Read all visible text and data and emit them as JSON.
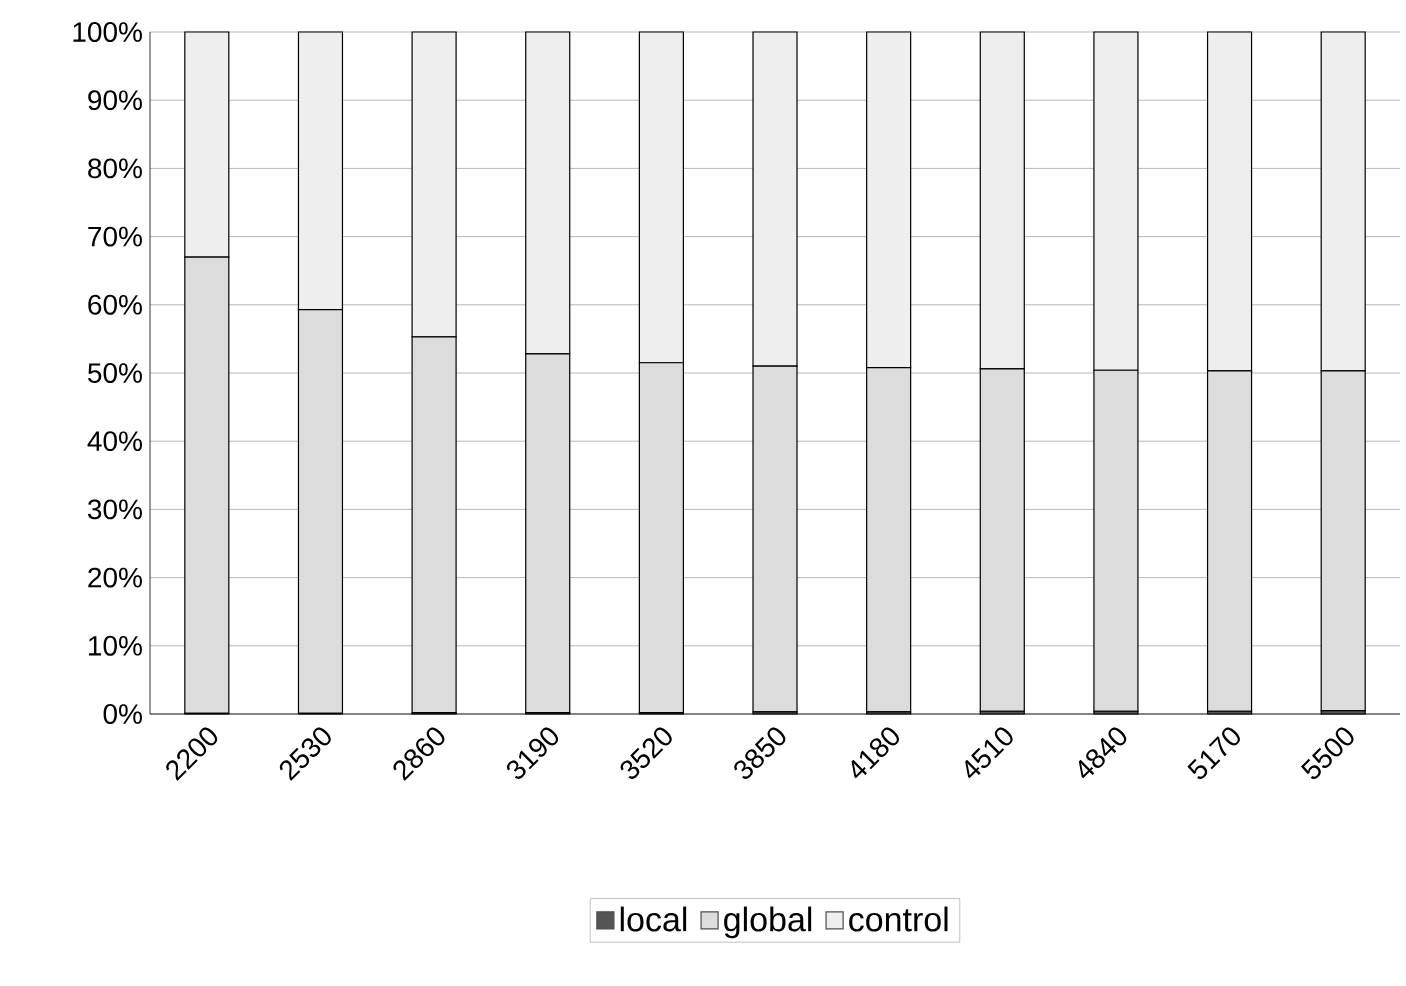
{
  "chart_data": {
    "type": "bar",
    "stacked": true,
    "categories": [
      "2200",
      "2530",
      "2860",
      "3190",
      "3520",
      "3850",
      "4180",
      "4510",
      "4840",
      "5170",
      "5500"
    ],
    "series": [
      {
        "name": "local",
        "color": "#555555",
        "values": [
          0.1,
          0.1,
          0.2,
          0.2,
          0.2,
          0.3,
          0.3,
          0.4,
          0.4,
          0.4,
          0.5
        ]
      },
      {
        "name": "global",
        "color": "#dcdcdc",
        "values": [
          66.9,
          59.2,
          55.1,
          52.6,
          51.3,
          50.7,
          50.5,
          50.2,
          50.0,
          49.9,
          49.8
        ]
      },
      {
        "name": "control",
        "color": "#eeeeee",
        "values": [
          33.0,
          40.7,
          44.7,
          47.2,
          48.5,
          49.0,
          49.2,
          49.4,
          49.6,
          49.7,
          49.7
        ]
      }
    ],
    "ylim": [
      0,
      100
    ],
    "yticks": [
      {
        "value": 0,
        "label": "0%"
      },
      {
        "value": 10,
        "label": "10%"
      },
      {
        "value": 20,
        "label": "20%"
      },
      {
        "value": 30,
        "label": "30%"
      },
      {
        "value": 40,
        "label": "40%"
      },
      {
        "value": 50,
        "label": "50%"
      },
      {
        "value": 60,
        "label": "60%"
      },
      {
        "value": 70,
        "label": "70%"
      },
      {
        "value": 80,
        "label": "80%"
      },
      {
        "value": 90,
        "label": "90%"
      },
      {
        "value": 100,
        "label": "100%"
      }
    ],
    "grid": "y",
    "legend": "bottom"
  }
}
